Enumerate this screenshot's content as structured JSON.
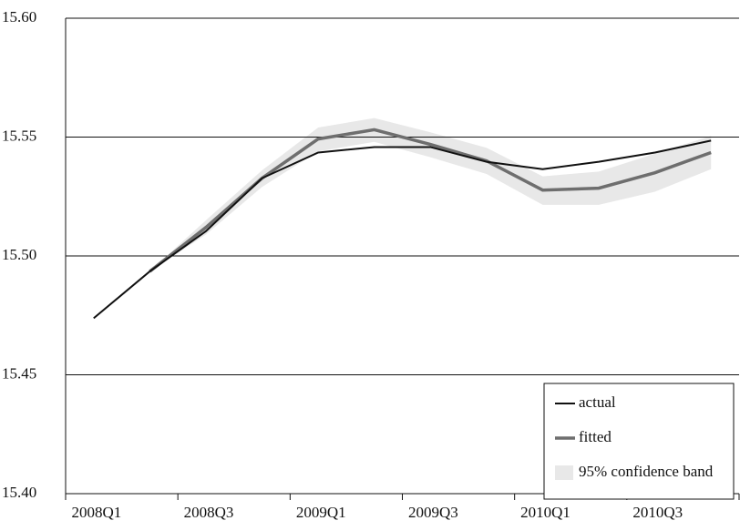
{
  "chart_data": {
    "type": "line",
    "categories": [
      "2008Q1",
      null,
      "2008Q3",
      null,
      "2009Q1",
      null,
      "2009Q3",
      null,
      "2010Q1",
      null,
      "2010Q3",
      null
    ],
    "series": [
      {
        "name": "actual",
        "color": "#111111",
        "values": [
          15.4738,
          15.4935,
          15.5104,
          15.5327,
          15.5435,
          15.5458,
          15.5458,
          15.5396,
          15.5365,
          15.5396,
          15.5435,
          15.5485
        ]
      },
      {
        "name": "fitted",
        "color": "#6e6e6e",
        "values": [
          null,
          15.4935,
          15.512,
          15.5327,
          15.5492,
          15.5531,
          15.5469,
          15.54,
          15.5277,
          15.5285,
          15.535,
          15.5435
        ]
      }
    ],
    "band": {
      "name": "95% confidence band",
      "color": "#e8e8e8",
      "lower": [
        null,
        15.4935,
        15.509,
        15.529,
        15.544,
        15.548,
        15.5415,
        15.5345,
        15.5215,
        15.5215,
        15.527,
        15.5365
      ],
      "upper": [
        null,
        15.4935,
        15.515,
        15.536,
        15.554,
        15.558,
        15.552,
        15.5455,
        15.5335,
        15.5355,
        15.543,
        15.5505
      ]
    },
    "ylim": [
      15.4,
      15.6
    ],
    "yticks": [
      {
        "value": 15.4,
        "label": "15.40"
      },
      {
        "value": 15.45,
        "label": "15.45"
      },
      {
        "value": 15.5,
        "label": "15.50"
      },
      {
        "value": 15.55,
        "label": "15.55"
      },
      {
        "value": 15.6,
        "label": "15.60"
      }
    ],
    "grid": true,
    "legend": "lower right"
  }
}
